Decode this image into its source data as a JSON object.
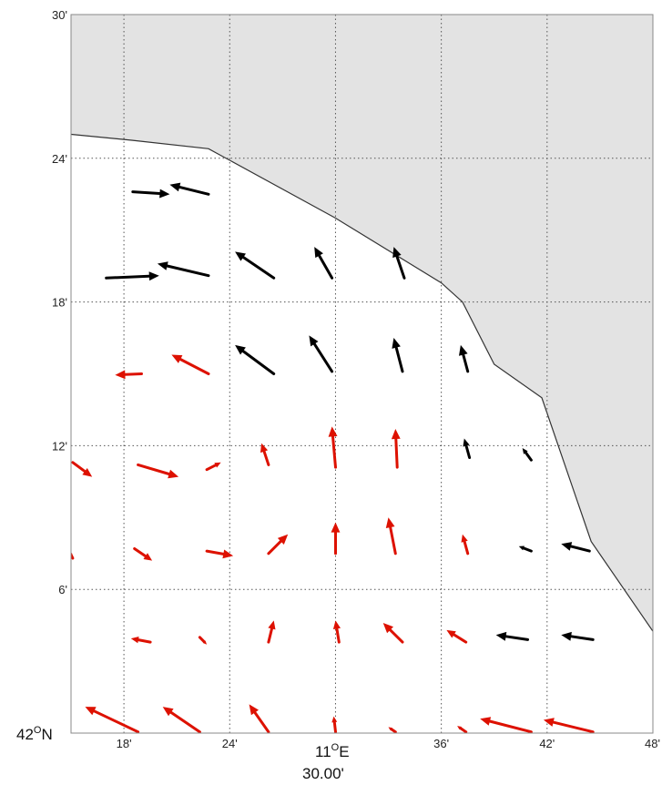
{
  "map": {
    "colors": {
      "land": "#e3e3e3",
      "coast": "#333333",
      "grid": "#555555",
      "arrow_black": "#000000",
      "arrow_red": "#dd1100"
    },
    "lon_ticks": [
      {
        "lon": 18,
        "label": "18'"
      },
      {
        "lon": 24,
        "label": "24'"
      },
      {
        "lon": 36,
        "label": "36'"
      },
      {
        "lon": 42,
        "label": "42'"
      },
      {
        "lon": 48,
        "label": "48'"
      }
    ],
    "grid_lons": [
      18,
      24,
      30,
      36,
      42
    ],
    "lat_ticks": [
      {
        "lat": 6,
        "label": "6'"
      },
      {
        "lat": 12,
        "label": "12'"
      },
      {
        "lat": 18,
        "label": "18'"
      },
      {
        "lat": 24,
        "label": "24'"
      },
      {
        "lat": 30,
        "label": "30'"
      }
    ],
    "grid_lats": [
      6,
      12,
      18,
      24
    ],
    "axis_labels": {
      "lat_deg": "42",
      "lat_deg_sign": "O",
      "lat_hem": "N",
      "lon_deg": "11",
      "lon_deg_sign": "O",
      "lon_hem": "E",
      "lon_min": "30.00'"
    },
    "coastline": [
      [
        15,
        25
      ],
      [
        18.5,
        24.75
      ],
      [
        22.8,
        24.4
      ],
      [
        30,
        21.5
      ],
      [
        36,
        18.8
      ],
      [
        37.2,
        18
      ],
      [
        39,
        15.4
      ],
      [
        41.7,
        14.0
      ],
      [
        44.5,
        8.0
      ],
      [
        48,
        4.25
      ]
    ],
    "arrows": [
      {
        "x0": 18.5,
        "y0": 22.6,
        "x1": 20.6,
        "y1": 22.5,
        "c": "b"
      },
      {
        "x0": 22.8,
        "y0": 22.5,
        "x1": 20.6,
        "y1": 22.9,
        "c": "b"
      },
      {
        "x0": 17.0,
        "y0": 19.0,
        "x1": 20.0,
        "y1": 19.1,
        "c": "b"
      },
      {
        "x0": 22.8,
        "y0": 19.1,
        "x1": 19.9,
        "y1": 19.6,
        "c": "b"
      },
      {
        "x0": 26.5,
        "y0": 19.0,
        "x1": 24.3,
        "y1": 20.1,
        "c": "b"
      },
      {
        "x0": 29.8,
        "y0": 19.0,
        "x1": 28.8,
        "y1": 20.3,
        "c": "b"
      },
      {
        "x0": 33.9,
        "y0": 19.0,
        "x1": 33.3,
        "y1": 20.3,
        "c": "b"
      },
      {
        "x0": 26.5,
        "y0": 15.0,
        "x1": 24.3,
        "y1": 16.2,
        "c": "b"
      },
      {
        "x0": 29.8,
        "y0": 15.1,
        "x1": 28.5,
        "y1": 16.6,
        "c": "b"
      },
      {
        "x0": 33.8,
        "y0": 15.1,
        "x1": 33.3,
        "y1": 16.5,
        "c": "b"
      },
      {
        "x0": 37.5,
        "y0": 15.1,
        "x1": 37.1,
        "y1": 16.2,
        "c": "b"
      },
      {
        "x0": 37.6,
        "y0": 11.5,
        "x1": 37.3,
        "y1": 12.3,
        "c": "b"
      },
      {
        "x0": 41.1,
        "y0": 11.4,
        "x1": 40.6,
        "y1": 11.9,
        "c": "b"
      },
      {
        "x0": 41.1,
        "y0": 7.6,
        "x1": 40.4,
        "y1": 7.8,
        "c": "b"
      },
      {
        "x0": 44.4,
        "y0": 7.6,
        "x1": 42.8,
        "y1": 7.9,
        "c": "b"
      },
      {
        "x0": 40.9,
        "y0": 3.9,
        "x1": 39.1,
        "y1": 4.1,
        "c": "b"
      },
      {
        "x0": 44.6,
        "y0": 3.9,
        "x1": 42.8,
        "y1": 4.1,
        "c": "b"
      },
      {
        "x0": 19.0,
        "y0": 15.0,
        "x1": 17.5,
        "y1": 14.95,
        "c": "r"
      },
      {
        "x0": 22.8,
        "y0": 15.0,
        "x1": 20.7,
        "y1": 15.8,
        "c": "r"
      },
      {
        "x0": 15.1,
        "y0": 11.3,
        "x1": 16.2,
        "y1": 10.7,
        "c": "r"
      },
      {
        "x0": 18.8,
        "y0": 11.2,
        "x1": 21.1,
        "y1": 10.7,
        "c": "r"
      },
      {
        "x0": 22.7,
        "y0": 11.0,
        "x1": 23.5,
        "y1": 11.3,
        "c": "r"
      },
      {
        "x0": 26.2,
        "y0": 11.2,
        "x1": 25.8,
        "y1": 12.1,
        "c": "r"
      },
      {
        "x0": 30.0,
        "y0": 11.1,
        "x1": 29.8,
        "y1": 12.8,
        "c": "r"
      },
      {
        "x0": 33.5,
        "y0": 11.1,
        "x1": 33.4,
        "y1": 12.7,
        "c": "r"
      },
      {
        "x0": 15.1,
        "y0": 7.3,
        "x1": 14.9,
        "y1": 7.6,
        "c": "r"
      },
      {
        "x0": 18.6,
        "y0": 7.7,
        "x1": 19.6,
        "y1": 7.2,
        "c": "r"
      },
      {
        "x0": 22.7,
        "y0": 7.6,
        "x1": 24.2,
        "y1": 7.4,
        "c": "r"
      },
      {
        "x0": 26.2,
        "y0": 7.5,
        "x1": 27.3,
        "y1": 8.3,
        "c": "r"
      },
      {
        "x0": 30.0,
        "y0": 7.5,
        "x1": 30.0,
        "y1": 8.8,
        "c": "r"
      },
      {
        "x0": 33.4,
        "y0": 7.5,
        "x1": 33.0,
        "y1": 9.0,
        "c": "r"
      },
      {
        "x0": 37.5,
        "y0": 7.5,
        "x1": 37.2,
        "y1": 8.3,
        "c": "r"
      },
      {
        "x0": 19.5,
        "y0": 3.8,
        "x1": 18.4,
        "y1": 3.95,
        "c": "r"
      },
      {
        "x0": 22.3,
        "y0": 4.0,
        "x1": 22.7,
        "y1": 3.7,
        "c": "r"
      },
      {
        "x0": 26.2,
        "y0": 3.8,
        "x1": 26.5,
        "y1": 4.7,
        "c": "r"
      },
      {
        "x0": 30.2,
        "y0": 3.8,
        "x1": 30.0,
        "y1": 4.7,
        "c": "r"
      },
      {
        "x0": 33.8,
        "y0": 3.8,
        "x1": 32.7,
        "y1": 4.6,
        "c": "r"
      },
      {
        "x0": 37.4,
        "y0": 3.8,
        "x1": 36.3,
        "y1": 4.3,
        "c": "r"
      },
      {
        "x0": 18.8,
        "y0": 0.05,
        "x1": 15.8,
        "y1": 1.1,
        "c": "r"
      },
      {
        "x0": 22.3,
        "y0": 0.05,
        "x1": 20.2,
        "y1": 1.1,
        "c": "r"
      },
      {
        "x0": 26.2,
        "y0": 0.05,
        "x1": 25.1,
        "y1": 1.2,
        "c": "r"
      },
      {
        "x0": 30.0,
        "y0": 0.05,
        "x1": 29.9,
        "y1": 0.7,
        "c": "r"
      },
      {
        "x0": 33.4,
        "y0": 0.05,
        "x1": 33.0,
        "y1": 0.25,
        "c": "r"
      },
      {
        "x0": 37.4,
        "y0": 0.05,
        "x1": 36.9,
        "y1": 0.3,
        "c": "r"
      },
      {
        "x0": 41.1,
        "y0": 0.05,
        "x1": 38.2,
        "y1": 0.6,
        "c": "r"
      },
      {
        "x0": 44.6,
        "y0": 0.05,
        "x1": 41.8,
        "y1": 0.55,
        "c": "r"
      }
    ]
  }
}
